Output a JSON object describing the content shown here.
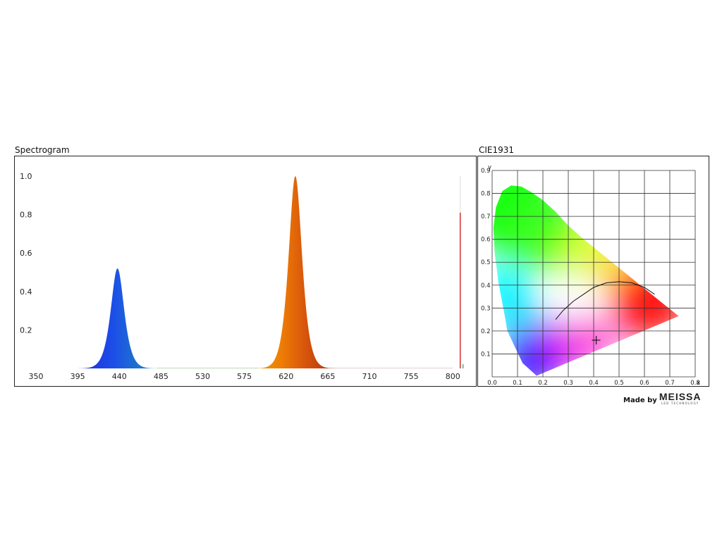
{
  "chart_data": [
    {
      "type": "area",
      "title": "Spectrogram",
      "xlabel": "",
      "ylabel": "",
      "xlim": [
        350,
        812
      ],
      "ylim": [
        0,
        1.0
      ],
      "x_ticks": [
        "350",
        "395",
        "440",
        "485",
        "530",
        "575",
        "620",
        "665",
        "710",
        "755",
        "800"
      ],
      "y_ticks": [
        "0.2",
        "0.4",
        "0.6",
        "0.8",
        "1.0"
      ],
      "grid": false,
      "series": [
        {
          "peaks": [
            {
              "center": 438,
              "height": 0.52,
              "width": 10,
              "color": "#1a3fe0"
            },
            {
              "center": 630,
              "height": 1.0,
              "width": 10,
              "color": "#e0600a"
            }
          ],
          "x": [
            400,
            410,
            420,
            425,
            430,
            435,
            438,
            441,
            445,
            450,
            455,
            460,
            470,
            480,
            490,
            500,
            560,
            580,
            590,
            600,
            610,
            615,
            620,
            625,
            628,
            630,
            632,
            635,
            640,
            645,
            650,
            655,
            660,
            670,
            680
          ],
          "values": [
            0.0,
            0.02,
            0.08,
            0.15,
            0.28,
            0.43,
            0.52,
            0.49,
            0.4,
            0.26,
            0.15,
            0.08,
            0.03,
            0.01,
            0.005,
            0.0,
            0.0,
            0.01,
            0.03,
            0.08,
            0.18,
            0.28,
            0.45,
            0.7,
            0.9,
            1.0,
            0.95,
            0.8,
            0.5,
            0.27,
            0.13,
            0.06,
            0.03,
            0.01,
            0.0
          ]
        }
      ],
      "marker_line": {
        "x": 808,
        "value": 0.81,
        "color": "#cc1111"
      }
    },
    {
      "type": "scatter",
      "title": "CIE1931",
      "xlabel": "x",
      "ylabel": "y",
      "xlim": [
        0.0,
        0.8
      ],
      "ylim": [
        0.0,
        0.9
      ],
      "x_ticks": [
        "0.0",
        "0.1",
        "0.2",
        "0.3",
        "0.4",
        "0.5",
        "0.6",
        "0.7",
        "0.8"
      ],
      "y_ticks": [
        "0.1",
        "0.2",
        "0.3",
        "0.4",
        "0.5",
        "0.6",
        "0.7",
        "0.8",
        "0.9"
      ],
      "grid": true,
      "gamut": [
        [
          0.175,
          0.005
        ],
        [
          0.16,
          0.02
        ],
        [
          0.14,
          0.04
        ],
        [
          0.12,
          0.06
        ],
        [
          0.09,
          0.13
        ],
        [
          0.06,
          0.2
        ],
        [
          0.045,
          0.295
        ],
        [
          0.025,
          0.41
        ],
        [
          0.01,
          0.54
        ],
        [
          0.005,
          0.65
        ],
        [
          0.015,
          0.74
        ],
        [
          0.04,
          0.81
        ],
        [
          0.075,
          0.835
        ],
        [
          0.115,
          0.83
        ],
        [
          0.155,
          0.805
        ],
        [
          0.2,
          0.77
        ],
        [
          0.25,
          0.72
        ],
        [
          0.3,
          0.66
        ],
        [
          0.35,
          0.61
        ],
        [
          0.45,
          0.52
        ],
        [
          0.55,
          0.43
        ],
        [
          0.65,
          0.34
        ],
        [
          0.735,
          0.265
        ]
      ],
      "planckian_locus": [
        [
          0.25,
          0.25
        ],
        [
          0.28,
          0.29
        ],
        [
          0.32,
          0.33
        ],
        [
          0.36,
          0.36
        ],
        [
          0.4,
          0.39
        ],
        [
          0.45,
          0.41
        ],
        [
          0.5,
          0.415
        ],
        [
          0.55,
          0.41
        ],
        [
          0.6,
          0.39
        ],
        [
          0.64,
          0.36
        ]
      ],
      "point": {
        "x": 0.41,
        "y": 0.16
      }
    }
  ],
  "credit": {
    "made_by": "Made by",
    "brand": "MEISSA",
    "brand_sub": "LED TECHNOLOGY"
  }
}
